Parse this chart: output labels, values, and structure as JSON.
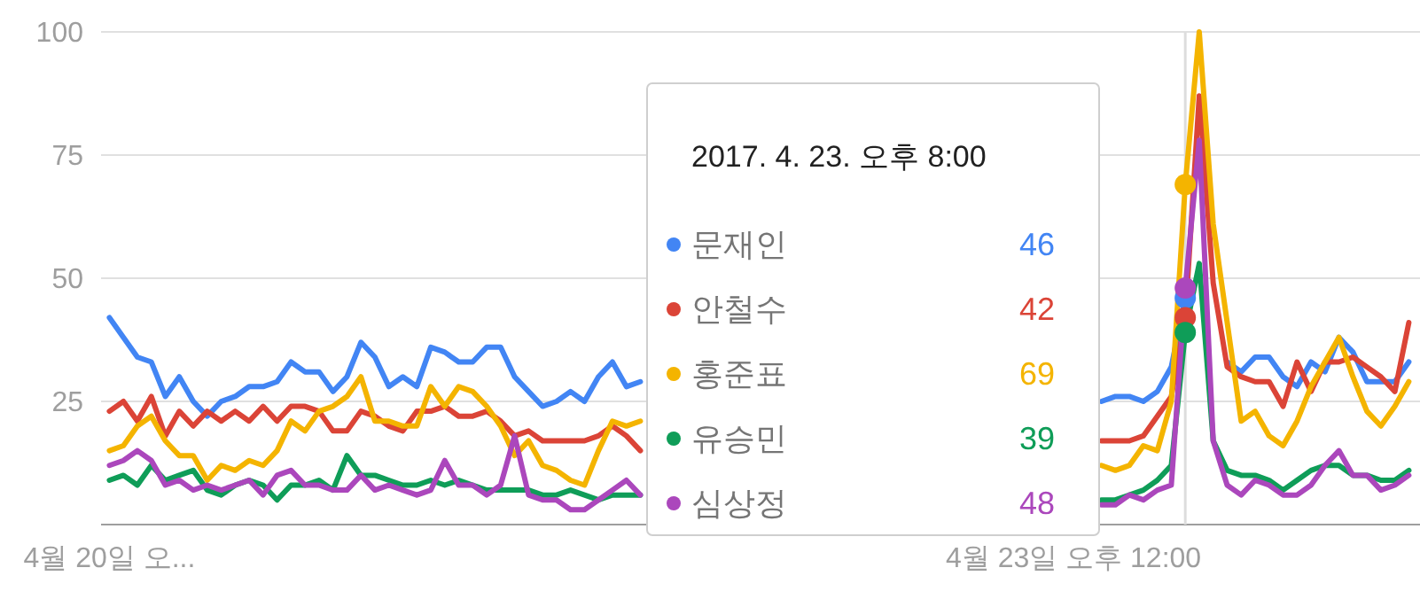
{
  "chart_data": {
    "type": "line",
    "title": "2017. 4. 23. 오후 8:00",
    "x": [
      "2017-04-20T15:00",
      "2017-04-20T16:00",
      "2017-04-20T17:00",
      "2017-04-20T18:00",
      "2017-04-20T19:00",
      "2017-04-20T20:00",
      "2017-04-20T21:00",
      "2017-04-20T22:00",
      "2017-04-20T23:00",
      "2017-04-21T00:00",
      "2017-04-21T01:00",
      "2017-04-21T02:00",
      "2017-04-21T03:00",
      "2017-04-21T04:00",
      "2017-04-21T05:00",
      "2017-04-21T06:00",
      "2017-04-21T07:00",
      "2017-04-21T08:00",
      "2017-04-21T09:00",
      "2017-04-21T10:00",
      "2017-04-21T11:00",
      "2017-04-21T12:00",
      "2017-04-21T13:00",
      "2017-04-21T14:00",
      "2017-04-21T15:00",
      "2017-04-21T16:00",
      "2017-04-21T17:00",
      "2017-04-21T18:00",
      "2017-04-21T19:00",
      "2017-04-21T20:00",
      "2017-04-21T21:00",
      "2017-04-21T22:00",
      "2017-04-21T23:00",
      "2017-04-22T00:00",
      "2017-04-22T01:00",
      "2017-04-22T02:00",
      "2017-04-22T03:00",
      "2017-04-22T04:00",
      "2017-04-22T05:00",
      "2017-04-22T06:00",
      "2017-04-22T07:00",
      "2017-04-22T08:00",
      "2017-04-22T09:00",
      "2017-04-22T10:00",
      "2017-04-22T11:00",
      "2017-04-22T12:00",
      "2017-04-22T13:00",
      "2017-04-22T14:00",
      "2017-04-22T15:00",
      "2017-04-22T16:00",
      "2017-04-22T17:00",
      "2017-04-22T18:00",
      "2017-04-22T19:00",
      "2017-04-22T20:00",
      "2017-04-22T21:00",
      "2017-04-22T22:00",
      "2017-04-22T23:00",
      "2017-04-23T00:00",
      "2017-04-23T01:00",
      "2017-04-23T02:00",
      "2017-04-23T03:00",
      "2017-04-23T04:00",
      "2017-04-23T05:00",
      "2017-04-23T06:00",
      "2017-04-23T07:00",
      "2017-04-23T08:00",
      "2017-04-23T09:00",
      "2017-04-23T10:00",
      "2017-04-23T11:00",
      "2017-04-23T12:00",
      "2017-04-23T13:00",
      "2017-04-23T14:00",
      "2017-04-23T15:00",
      "2017-04-23T16:00",
      "2017-04-23T17:00",
      "2017-04-23T18:00",
      "2017-04-23T19:00",
      "2017-04-23T20:00",
      "2017-04-23T21:00",
      "2017-04-23T22:00",
      "2017-04-23T23:00",
      "2017-04-24T00:00",
      "2017-04-24T01:00",
      "2017-04-24T02:00",
      "2017-04-24T03:00",
      "2017-04-24T04:00",
      "2017-04-24T05:00",
      "2017-04-24T06:00",
      "2017-04-24T07:00",
      "2017-04-24T08:00",
      "2017-04-24T09:00",
      "2017-04-24T10:00",
      "2017-04-24T11:00",
      "2017-04-24T12:00"
    ],
    "xlim": [
      "2017-04-20T14:24",
      "2017-04-24T12:48"
    ],
    "xticks": [
      {
        "value": "2017-04-20T15:00",
        "label": "4월 20일 오..."
      },
      {
        "value": "2017-04-23T12:00",
        "label": "4월 23일 오후 12:00"
      }
    ],
    "ylim": [
      0,
      100
    ],
    "yticks": [
      25,
      50,
      75,
      100
    ],
    "grid": "y",
    "legend": "bottom",
    "line_style": "solid",
    "annotations": [
      "46",
      "42",
      "69",
      "39",
      "48"
    ],
    "ref_lines": [
      {
        "axis": "x",
        "value": "2017-04-23T20:00",
        "color": "#dddddd"
      }
    ],
    "series": [
      {
        "name": "문재인",
        "color": "#4285f4",
        "values": [
          42,
          38,
          34,
          33,
          26,
          30,
          25,
          22,
          25,
          26,
          28,
          28,
          29,
          33,
          31,
          31,
          27,
          30,
          37,
          34,
          28,
          30,
          28,
          36,
          35,
          33,
          33,
          36,
          36,
          30,
          27,
          24,
          25,
          27,
          25,
          30,
          33,
          28,
          29,
          null,
          null,
          null,
          null,
          null,
          null,
          null,
          null,
          null,
          null,
          null,
          null,
          null,
          null,
          null,
          null,
          null,
          null,
          null,
          null,
          null,
          null,
          null,
          null,
          null,
          null,
          null,
          null,
          null,
          null,
          null,
          null,
          25,
          26,
          26,
          25,
          27,
          32,
          46,
          null,
          null,
          33,
          31,
          34,
          34,
          30,
          28,
          33,
          31,
          38,
          35,
          29,
          29,
          29,
          33
        ]
      },
      {
        "name": "안철수",
        "color": "#db4437",
        "values": [
          23,
          25,
          21,
          26,
          18,
          23,
          20,
          23,
          21,
          23,
          21,
          24,
          21,
          24,
          24,
          23,
          19,
          19,
          23,
          22,
          20,
          19,
          23,
          23,
          24,
          22,
          22,
          23,
          21,
          18,
          19,
          17,
          17,
          17,
          17,
          18,
          20,
          18,
          15,
          null,
          null,
          null,
          null,
          null,
          null,
          null,
          null,
          null,
          null,
          null,
          null,
          null,
          null,
          null,
          null,
          null,
          null,
          null,
          null,
          null,
          null,
          null,
          null,
          null,
          null,
          null,
          null,
          null,
          null,
          null,
          null,
          17,
          17,
          17,
          18,
          22,
          26,
          42,
          87,
          49,
          32,
          30,
          29,
          29,
          24,
          33,
          27,
          33,
          33,
          34,
          32,
          30,
          27,
          41
        ]
      },
      {
        "name": "홍준표",
        "color": "#f4b400",
        "values": [
          15,
          16,
          20,
          22,
          17,
          14,
          14,
          9,
          12,
          11,
          13,
          12,
          15,
          21,
          19,
          23,
          24,
          26,
          30,
          21,
          21,
          20,
          20,
          28,
          24,
          28,
          27,
          24,
          20,
          14,
          17,
          12,
          11,
          9,
          8,
          15,
          21,
          20,
          21,
          null,
          null,
          null,
          null,
          null,
          null,
          null,
          null,
          null,
          null,
          null,
          null,
          null,
          null,
          null,
          null,
          null,
          null,
          null,
          null,
          null,
          null,
          null,
          null,
          null,
          null,
          null,
          null,
          null,
          null,
          null,
          null,
          12,
          11,
          12,
          16,
          15,
          25,
          69,
          100,
          61,
          41,
          21,
          23,
          18,
          16,
          21,
          28,
          33,
          38,
          30,
          23,
          20,
          24,
          29
        ]
      },
      {
        "name": "유승민",
        "color": "#0f9d58",
        "values": [
          9,
          10,
          8,
          12,
          9,
          10,
          11,
          7,
          6,
          8,
          9,
          8,
          5,
          8,
          8,
          9,
          7,
          14,
          10,
          10,
          9,
          8,
          8,
          9,
          8,
          9,
          8,
          7,
          7,
          7,
          7,
          6,
          6,
          7,
          6,
          5,
          6,
          6,
          6,
          null,
          null,
          null,
          null,
          null,
          null,
          null,
          null,
          null,
          null,
          null,
          null,
          null,
          null,
          null,
          null,
          null,
          null,
          null,
          null,
          null,
          null,
          null,
          null,
          null,
          null,
          null,
          null,
          null,
          null,
          null,
          null,
          5,
          5,
          6,
          7,
          9,
          12,
          39,
          53,
          17,
          11,
          10,
          10,
          9,
          7,
          9,
          11,
          12,
          12,
          10,
          10,
          9,
          9,
          11
        ]
      },
      {
        "name": "심상정",
        "color": "#ab47bc",
        "values": [
          12,
          13,
          15,
          13,
          8,
          9,
          7,
          8,
          7,
          8,
          9,
          6,
          10,
          11,
          8,
          8,
          7,
          7,
          10,
          7,
          8,
          7,
          6,
          7,
          13,
          8,
          8,
          6,
          8,
          18,
          6,
          5,
          5,
          3,
          3,
          5,
          7,
          9,
          6,
          null,
          null,
          null,
          null,
          null,
          null,
          null,
          null,
          null,
          null,
          null,
          null,
          null,
          null,
          null,
          null,
          null,
          null,
          null,
          null,
          null,
          null,
          null,
          null,
          null,
          null,
          null,
          null,
          null,
          null,
          null,
          null,
          4,
          4,
          6,
          5,
          7,
          8,
          48,
          78,
          17,
          8,
          6,
          9,
          8,
          6,
          6,
          8,
          12,
          15,
          10,
          10,
          7,
          8,
          10
        ]
      }
    ]
  }
}
